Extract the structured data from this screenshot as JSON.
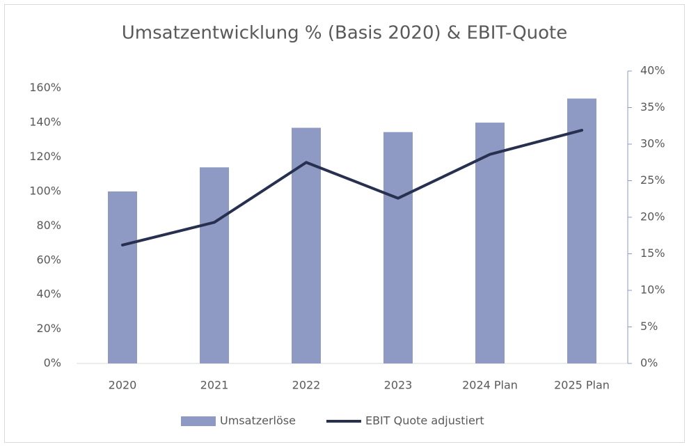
{
  "chart_data": {
    "type": "bar_line",
    "title": "Umsatzentwicklung % (Basis 2020) & EBIT-Quote",
    "categories": [
      "2020",
      "2021",
      "2022",
      "2023",
      "2024 Plan",
      "2025 Plan"
    ],
    "series": [
      {
        "name": "Umsatzerlöse",
        "type": "bar",
        "color": "#8e9ac4",
        "values": [
          100,
          114,
          137,
          134.5,
          140,
          154
        ]
      },
      {
        "name": "EBIT Quote adjustiert",
        "type": "line",
        "axis": "y2",
        "color": "#27304f",
        "values": [
          16.2,
          19.3,
          27.5,
          22.6,
          28.6,
          31.9
        ]
      }
    ],
    "ylim": [
      0,
      170
    ],
    "yticks": [
      {
        "value": 0,
        "label": "0%"
      },
      {
        "value": 20,
        "label": "20%"
      },
      {
        "value": 40,
        "label": "40%"
      },
      {
        "value": 60,
        "label": "60%"
      },
      {
        "value": 80,
        "label": "80%"
      },
      {
        "value": 100,
        "label": "100%"
      },
      {
        "value": 120,
        "label": "120%"
      },
      {
        "value": 140,
        "label": "140%"
      },
      {
        "value": 160,
        "label": "160%"
      }
    ],
    "y2lim": [
      0,
      40
    ],
    "y2ticks": [
      {
        "value": 0,
        "label": "0%"
      },
      {
        "value": 5,
        "label": "5%"
      },
      {
        "value": 10,
        "label": "10%"
      },
      {
        "value": 15,
        "label": "15%"
      },
      {
        "value": 20,
        "label": "20%"
      },
      {
        "value": 25,
        "label": "25%"
      },
      {
        "value": 30,
        "label": "30%"
      },
      {
        "value": 35,
        "label": "35%"
      },
      {
        "value": 40,
        "label": "40%"
      }
    ],
    "grid": false,
    "legend": "bottom"
  }
}
